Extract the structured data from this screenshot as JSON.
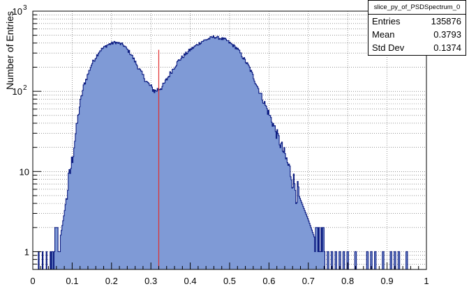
{
  "chart_data": {
    "type": "histogram",
    "title": "",
    "xlabel": "",
    "ylabel": "Number of Entries",
    "xlim": [
      0,
      1
    ],
    "ylim": [
      0.6,
      1000
    ],
    "yscale": "log",
    "grid": true,
    "x_ticks": [
      "0",
      "0.1",
      "0.2",
      "0.3",
      "0.4",
      "0.5",
      "0.6",
      "0.7",
      "0.8",
      "0.9",
      "1"
    ],
    "y_ticks": [
      {
        "value": 1,
        "label": "1",
        "exp": ""
      },
      {
        "value": 10,
        "label": "10",
        "exp": ""
      },
      {
        "value": 100,
        "label": "10",
        "exp": "2"
      },
      {
        "value": 1000,
        "label": "10",
        "exp": "3"
      }
    ],
    "fill_color": "#7f9ad6",
    "line_color": "#0a1a80",
    "marker_line": {
      "x": 0.32,
      "y_top": 330,
      "color": "#e03030"
    },
    "profile_points": [
      {
        "x": 0.055,
        "y": 1
      },
      {
        "x": 0.07,
        "y": 1.5
      },
      {
        "x": 0.08,
        "y": 3
      },
      {
        "x": 0.09,
        "y": 7
      },
      {
        "x": 0.1,
        "y": 14
      },
      {
        "x": 0.11,
        "y": 32
      },
      {
        "x": 0.12,
        "y": 70
      },
      {
        "x": 0.13,
        "y": 120
      },
      {
        "x": 0.15,
        "y": 220
      },
      {
        "x": 0.17,
        "y": 320
      },
      {
        "x": 0.19,
        "y": 380
      },
      {
        "x": 0.21,
        "y": 410
      },
      {
        "x": 0.23,
        "y": 380
      },
      {
        "x": 0.25,
        "y": 290
      },
      {
        "x": 0.27,
        "y": 190
      },
      {
        "x": 0.29,
        "y": 130
      },
      {
        "x": 0.31,
        "y": 100
      },
      {
        "x": 0.33,
        "y": 115
      },
      {
        "x": 0.35,
        "y": 170
      },
      {
        "x": 0.37,
        "y": 240
      },
      {
        "x": 0.4,
        "y": 330
      },
      {
        "x": 0.43,
        "y": 420
      },
      {
        "x": 0.46,
        "y": 480
      },
      {
        "x": 0.49,
        "y": 440
      },
      {
        "x": 0.52,
        "y": 340
      },
      {
        "x": 0.55,
        "y": 200
      },
      {
        "x": 0.58,
        "y": 90
      },
      {
        "x": 0.61,
        "y": 40
      },
      {
        "x": 0.64,
        "y": 16
      },
      {
        "x": 0.67,
        "y": 6
      },
      {
        "x": 0.7,
        "y": 2.5
      },
      {
        "x": 0.72,
        "y": 1.3
      },
      {
        "x": 0.74,
        "y": 1
      }
    ],
    "sparse_bins": [
      0.015,
      0.025,
      0.035,
      0.045,
      0.05,
      0.057,
      0.063,
      0.74,
      0.75,
      0.76,
      0.77,
      0.78,
      0.79,
      0.8,
      0.82,
      0.85,
      0.86,
      0.87,
      0.89,
      0.91,
      0.92,
      0.93,
      0.95
    ]
  },
  "stats": {
    "name": "slice_py_of_PSDSpectrum_0",
    "entries_label": "Entries",
    "entries_value": "135876",
    "mean_label": "Mean",
    "mean_value": "0.3793",
    "std_label": "Std Dev",
    "std_value": "0.1374"
  }
}
